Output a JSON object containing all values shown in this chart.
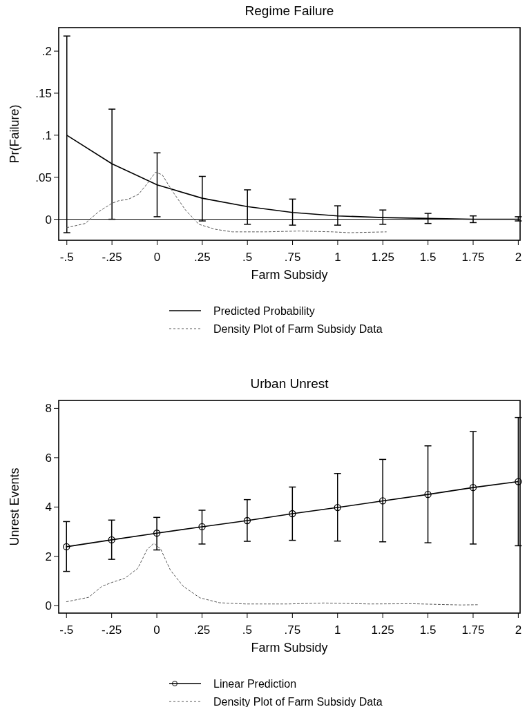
{
  "chart_data": [
    {
      "type": "line",
      "title": "Regime Failure",
      "xlabel": "Farm Subsidy",
      "ylabel": "Pr(Failure)",
      "xlim": [
        -0.545,
        2.01
      ],
      "ylim": [
        -0.025,
        0.228
      ],
      "xticks": [
        {
          "value": -0.5,
          "label": "-.5"
        },
        {
          "value": -0.25,
          "label": "-.25"
        },
        0,
        {
          "value": 0.25,
          "label": ".25"
        },
        {
          "value": 0.5,
          "label": ".5"
        },
        {
          "value": 0.75,
          "label": ".75"
        },
        1,
        1.25,
        1.5,
        1.75,
        2
      ],
      "yticks": [
        0,
        {
          "value": 0.05,
          "label": ".05"
        },
        {
          "value": 0.1,
          "label": ".1"
        },
        {
          "value": 0.15,
          "label": ".15"
        },
        {
          "value": 0.2,
          "label": ".2"
        }
      ],
      "ref_lines": [
        {
          "axis": "y",
          "value": 0,
          "color": "#000000"
        }
      ],
      "legend": "bottom",
      "series": [
        {
          "name": "Predicted Probability",
          "color": "#000000",
          "marker": "none",
          "line_style": "solid",
          "x": [
            -0.5,
            -0.25,
            0,
            0.25,
            0.5,
            0.75,
            1,
            1.25,
            1.5,
            1.75,
            2
          ],
          "values": [
            0.1,
            0.066,
            0.041,
            0.025,
            0.015,
            0.008,
            0.004,
            0.002,
            0.001,
            0,
            0
          ],
          "errors": [
            [
              -0.016,
              0.218
            ],
            [
              0,
              0.131
            ],
            [
              0.003,
              0.079
            ],
            [
              -0.002,
              0.051
            ],
            [
              -0.006,
              0.035
            ],
            [
              -0.007,
              0.024
            ],
            [
              -0.007,
              0.016
            ],
            [
              -0.006,
              0.011
            ],
            [
              -0.005,
              0.007
            ],
            [
              -0.004,
              0.004
            ],
            [
              -0.002,
              0.003
            ]
          ]
        },
        {
          "name": "Density Plot of Farm Subsidy Data",
          "color": "#555555",
          "marker": "none",
          "line_style": "dashed",
          "x": [
            -0.5,
            -0.398,
            -0.324,
            -0.25,
            -0.213,
            -0.157,
            -0.102,
            -0.056,
            -0.009,
            0.028,
            0.083,
            0.157,
            0.231,
            0.324,
            0.417,
            0.602,
            0.787,
            0.972,
            1.065,
            1.269
          ],
          "values": [
            -0.01,
            -0.005,
            0.009,
            0.019,
            0.022,
            0.024,
            0.03,
            0.042,
            0.056,
            0.053,
            0.034,
            0.011,
            -0.006,
            -0.012,
            -0.015,
            -0.015,
            -0.014,
            -0.015,
            -0.016,
            -0.015
          ]
        }
      ]
    },
    {
      "type": "line",
      "title": "Urban Unrest",
      "xlabel": "Farm Subsidy",
      "ylabel": "Unrest Events",
      "xlim": [
        -0.543,
        2.01
      ],
      "ylim": [
        -0.3,
        8.32
      ],
      "xticks": [
        {
          "value": -0.5,
          "label": "-.5"
        },
        {
          "value": -0.25,
          "label": "-.25"
        },
        0,
        {
          "value": 0.25,
          "label": ".25"
        },
        {
          "value": 0.5,
          "label": ".5"
        },
        {
          "value": 0.75,
          "label": ".75"
        },
        1,
        1.25,
        1.5,
        1.75,
        2
      ],
      "yticks": [
        0,
        2,
        4,
        6,
        8
      ],
      "legend": "bottom",
      "series": [
        {
          "name": "Linear Prediction",
          "color": "#000000",
          "marker": "circle",
          "line_style": "solid",
          "x": [
            -0.5,
            -0.25,
            0,
            0.25,
            0.5,
            0.75,
            1,
            1.25,
            1.5,
            1.75,
            2
          ],
          "values": [
            2.39,
            2.67,
            2.94,
            3.2,
            3.45,
            3.73,
            3.98,
            4.25,
            4.51,
            4.79,
            5.03
          ],
          "errors": [
            [
              1.39,
              3.41
            ],
            [
              1.88,
              3.47
            ],
            [
              2.26,
              3.58
            ],
            [
              2.5,
              3.87
            ],
            [
              2.61,
              4.3
            ],
            [
              2.65,
              4.81
            ],
            [
              2.62,
              5.36
            ],
            [
              2.59,
              5.93
            ],
            [
              2.55,
              6.48
            ],
            [
              2.5,
              7.06
            ],
            [
              2.43,
              7.63
            ]
          ]
        },
        {
          "name": "Density Plot of Farm Subsidy Data",
          "color": "#555555",
          "marker": "none",
          "line_style": "dashed",
          "x": [
            -0.5,
            -0.377,
            -0.305,
            -0.25,
            -0.178,
            -0.106,
            -0.052,
            -0.016,
            0.021,
            0.075,
            0.147,
            0.238,
            0.346,
            0.491,
            0.726,
            0.925,
            1.178,
            1.413,
            1.684,
            1.774
          ],
          "values": [
            0.16,
            0.34,
            0.78,
            0.94,
            1.11,
            1.51,
            2.3,
            2.53,
            2.3,
            1.44,
            0.78,
            0.32,
            0.12,
            0.07,
            0.07,
            0.11,
            0.07,
            0.08,
            0.03,
            0.04
          ]
        }
      ]
    }
  ]
}
